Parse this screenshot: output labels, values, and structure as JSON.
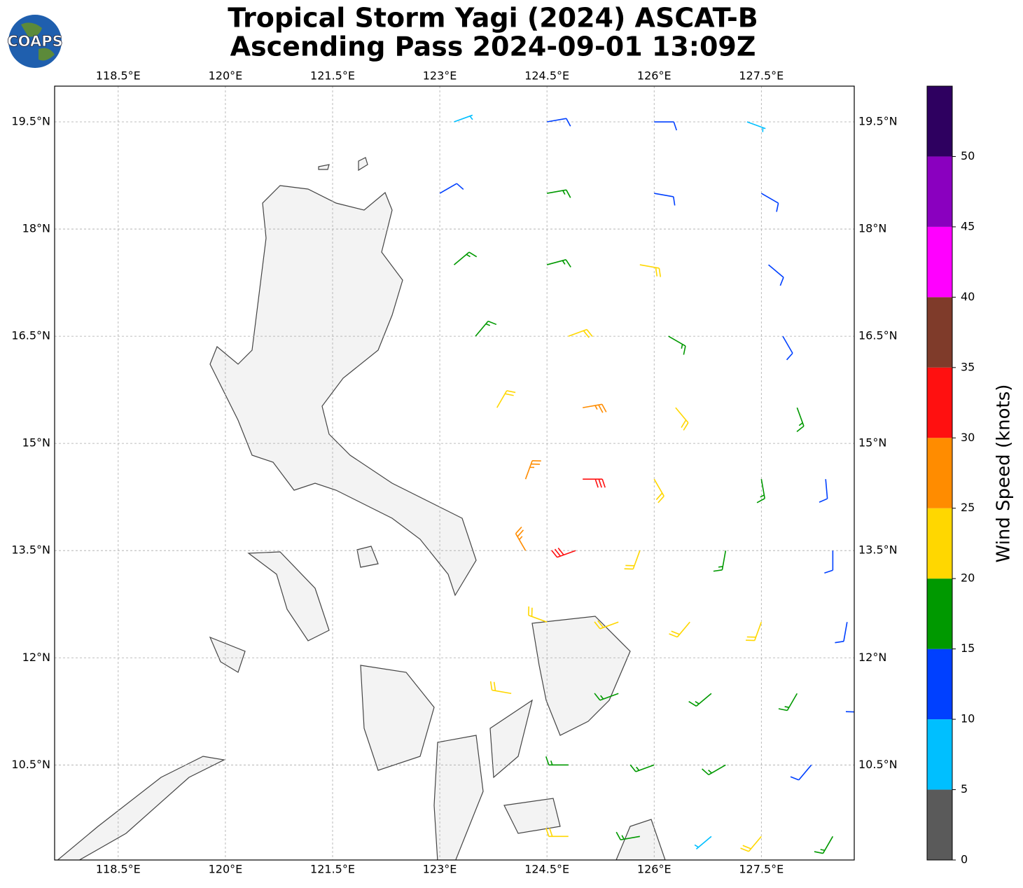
{
  "map": {
    "title": "Tropical Storm Yagi (2024) ASCAT-B",
    "subtitle": "Ascending Pass 2024-09-01 13:09Z",
    "logo": "COAPS",
    "xlim": [
      117.61,
      128.8
    ],
    "ylim": [
      9.17,
      20.0
    ],
    "xticks": [
      {
        "value": 118.5,
        "label": "118.5°E"
      },
      {
        "value": 120,
        "label": "120°E"
      },
      {
        "value": 121.5,
        "label": "121.5°E"
      },
      {
        "value": 123,
        "label": "123°E"
      },
      {
        "value": 124.5,
        "label": "124.5°E"
      },
      {
        "value": 126,
        "label": "126°E"
      },
      {
        "value": 127.5,
        "label": "127.5°E"
      }
    ],
    "yticks": [
      {
        "value": 10.5,
        "label": "10.5°N"
      },
      {
        "value": 12,
        "label": "12°N"
      },
      {
        "value": 13.5,
        "label": "13.5°N"
      },
      {
        "value": 15,
        "label": "15°N"
      },
      {
        "value": 16.5,
        "label": "16.5°N"
      },
      {
        "value": 18,
        "label": "18°N"
      },
      {
        "value": 19.5,
        "label": "19.5°N"
      }
    ],
    "grid": true,
    "colorbar": {
      "label": "Wind Speed (knots)",
      "bins": [
        0,
        5,
        10,
        15,
        20,
        25,
        30,
        35,
        40,
        45,
        50,
        55
      ],
      "colors": [
        "#5a5a5a",
        "#00bfff",
        "#0040ff",
        "#009900",
        "#ffd700",
        "#ff8c00",
        "#ff1010",
        "#7f3b2a",
        "#ff00ff",
        "#8a00bf",
        "#2e0060"
      ],
      "ticks": [
        0,
        5,
        10,
        15,
        20,
        25,
        30,
        35,
        40,
        45,
        50
      ]
    },
    "barbs": [
      {
        "lon": 123.2,
        "lat": 19.5,
        "speed": 8,
        "direction": 70
      },
      {
        "lon": 124.5,
        "lat": 19.5,
        "speed": 12,
        "direction": 80
      },
      {
        "lon": 126,
        "lat": 19.5,
        "speed": 10,
        "direction": 90
      },
      {
        "lon": 127.3,
        "lat": 19.5,
        "speed": 8,
        "direction": 110
      },
      {
        "lon": 123,
        "lat": 18.5,
        "speed": 13,
        "direction": 60
      },
      {
        "lon": 124.5,
        "lat": 18.5,
        "speed": 16,
        "direction": 80
      },
      {
        "lon": 126,
        "lat": 18.5,
        "speed": 14,
        "direction": 100
      },
      {
        "lon": 127.5,
        "lat": 18.5,
        "speed": 12,
        "direction": 120
      },
      {
        "lon": 123.2,
        "lat": 17.5,
        "speed": 17,
        "direction": 50
      },
      {
        "lon": 124.5,
        "lat": 17.5,
        "speed": 19,
        "direction": 75
      },
      {
        "lon": 125.8,
        "lat": 17.5,
        "speed": 21,
        "direction": 100
      },
      {
        "lon": 127.6,
        "lat": 17.5,
        "speed": 14,
        "direction": 130
      },
      {
        "lon": 123.5,
        "lat": 16.5,
        "speed": 18,
        "direction": 40
      },
      {
        "lon": 124.8,
        "lat": 16.5,
        "speed": 22,
        "direction": 70
      },
      {
        "lon": 126.2,
        "lat": 16.5,
        "speed": 19,
        "direction": 120
      },
      {
        "lon": 127.8,
        "lat": 16.5,
        "speed": 13,
        "direction": 150
      },
      {
        "lon": 123.8,
        "lat": 15.5,
        "speed": 22,
        "direction": 30
      },
      {
        "lon": 125,
        "lat": 15.5,
        "speed": 25,
        "direction": 80
      },
      {
        "lon": 126.3,
        "lat": 15.5,
        "speed": 21,
        "direction": 140
      },
      {
        "lon": 128,
        "lat": 15.5,
        "speed": 17,
        "direction": 160
      },
      {
        "lon": 124.2,
        "lat": 14.5,
        "speed": 28,
        "direction": 20
      },
      {
        "lon": 125,
        "lat": 14.5,
        "speed": 33,
        "direction": 90
      },
      {
        "lon": 126,
        "lat": 14.5,
        "speed": 24,
        "direction": 150
      },
      {
        "lon": 127.5,
        "lat": 14.5,
        "speed": 18,
        "direction": 170
      },
      {
        "lon": 128.4,
        "lat": 14.5,
        "speed": 14,
        "direction": 175
      },
      {
        "lon": 124.2,
        "lat": 13.5,
        "speed": 27,
        "direction": 330
      },
      {
        "lon": 124.9,
        "lat": 13.5,
        "speed": 34,
        "direction": 250
      },
      {
        "lon": 125.8,
        "lat": 13.5,
        "speed": 23,
        "direction": 200
      },
      {
        "lon": 127,
        "lat": 13.5,
        "speed": 18,
        "direction": 190
      },
      {
        "lon": 128.5,
        "lat": 13.5,
        "speed": 13,
        "direction": 180
      },
      {
        "lon": 124.5,
        "lat": 12.5,
        "speed": 22,
        "direction": 290
      },
      {
        "lon": 125.5,
        "lat": 12.5,
        "speed": 21,
        "direction": 250
      },
      {
        "lon": 126.5,
        "lat": 12.5,
        "speed": 20,
        "direction": 220
      },
      {
        "lon": 127.5,
        "lat": 12.5,
        "speed": 22,
        "direction": 200
      },
      {
        "lon": 128.7,
        "lat": 12.5,
        "speed": 12,
        "direction": 190
      },
      {
        "lon": 124,
        "lat": 11.5,
        "speed": 21,
        "direction": 280
      },
      {
        "lon": 125.5,
        "lat": 11.5,
        "speed": 16,
        "direction": 250
      },
      {
        "lon": 126.8,
        "lat": 11.5,
        "speed": 19,
        "direction": 230
      },
      {
        "lon": 128,
        "lat": 11.5,
        "speed": 17,
        "direction": 210
      },
      {
        "lon": 128.9,
        "lat": 11.5,
        "speed": 12,
        "direction": 200
      },
      {
        "lon": 124.8,
        "lat": 10.5,
        "speed": 16,
        "direction": 270
      },
      {
        "lon": 126,
        "lat": 10.5,
        "speed": 19,
        "direction": 250
      },
      {
        "lon": 127,
        "lat": 10.5,
        "speed": 17,
        "direction": 240
      },
      {
        "lon": 128.2,
        "lat": 10.5,
        "speed": 14,
        "direction": 220
      },
      {
        "lon": 124.8,
        "lat": 9.5,
        "speed": 20,
        "direction": 270
      },
      {
        "lon": 125.8,
        "lat": 9.5,
        "speed": 17,
        "direction": 260
      },
      {
        "lon": 126.8,
        "lat": 9.5,
        "speed": 8,
        "direction": 230
      },
      {
        "lon": 127.5,
        "lat": 9.5,
        "speed": 22,
        "direction": 220
      },
      {
        "lon": 128.5,
        "lat": 9.5,
        "speed": 18,
        "direction": 210
      }
    ]
  }
}
